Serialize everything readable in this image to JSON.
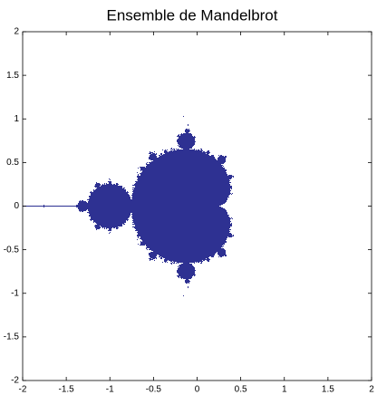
{
  "chart_data": {
    "type": "mandelbrot",
    "title": "Ensemble de Mandelbrot",
    "xlim": [
      -2,
      2
    ],
    "ylim": [
      -2,
      2
    ],
    "xticks": [
      -2,
      -1.5,
      -1,
      -0.5,
      0,
      0.5,
      1,
      1.5,
      2
    ],
    "yticks": [
      -2,
      -1.5,
      -1,
      -0.5,
      0,
      0.5,
      1,
      1.5,
      2
    ],
    "color": "#2e3192"
  }
}
